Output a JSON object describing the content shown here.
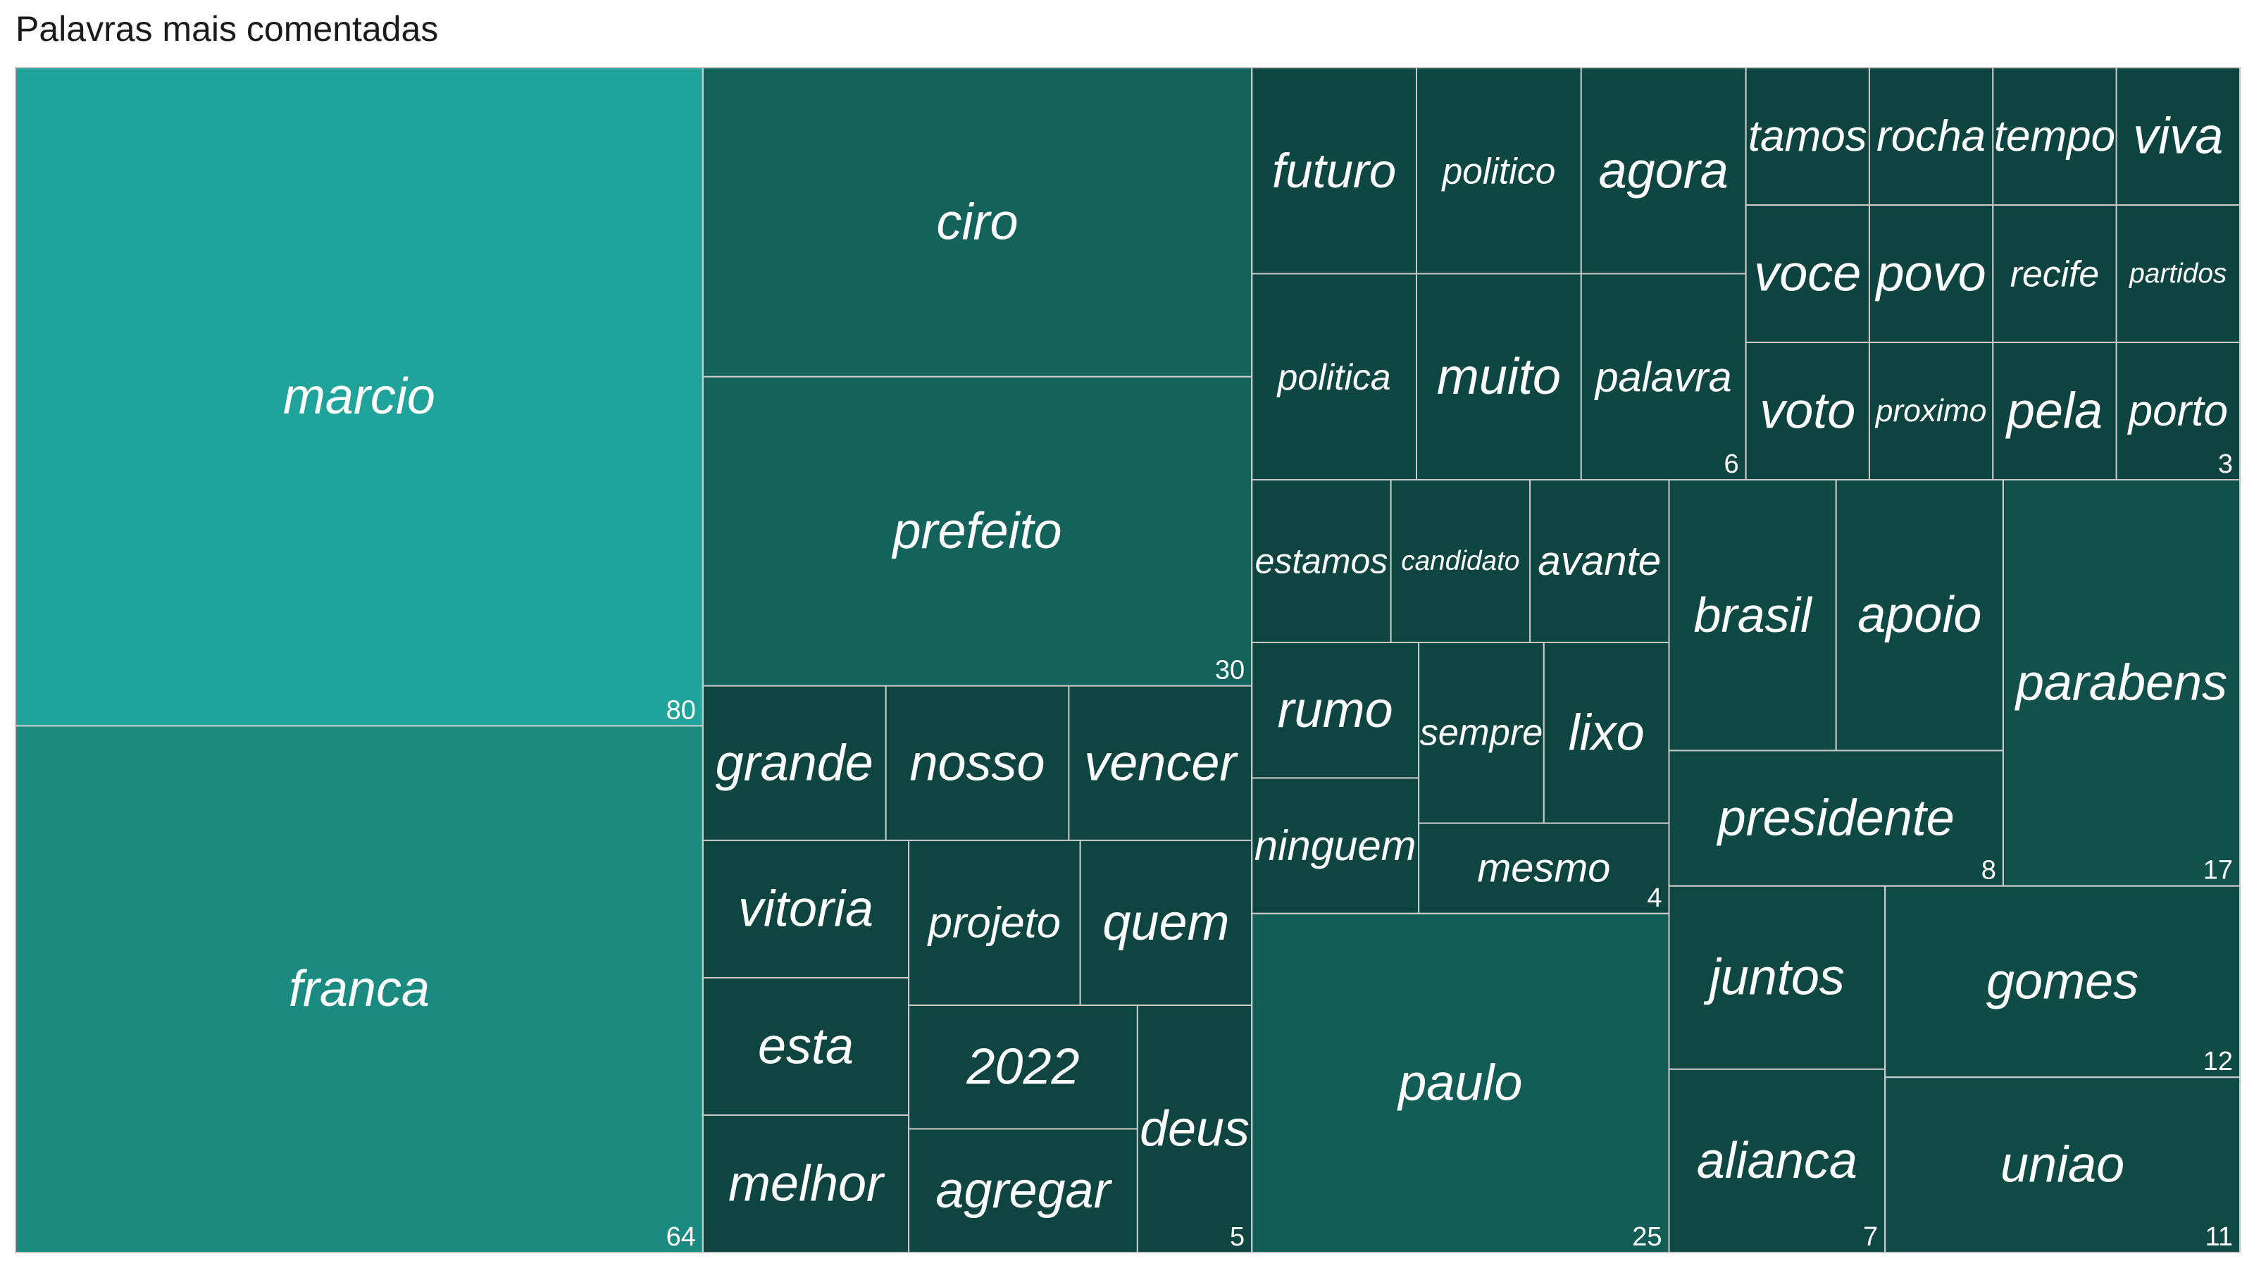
{
  "chart_data": {
    "type": "treemap",
    "title": "Palavras mais comentadas",
    "groups": [
      {
        "value": 80,
        "color": "#20a39a",
        "words": [
          {
            "label": "marcio",
            "value": 80
          }
        ]
      },
      {
        "value": 64,
        "color": "#1b8b81",
        "words": [
          {
            "label": "franca",
            "value": 64
          }
        ]
      },
      {
        "value": 30,
        "color": "#14625c",
        "words": [
          {
            "label": "ciro",
            "value": 30
          },
          {
            "label": "prefeito",
            "value": 30
          }
        ]
      },
      {
        "value": 25,
        "color": "#135d57",
        "words": [
          {
            "label": "paulo",
            "value": 25
          }
        ]
      },
      {
        "value": 17,
        "color": "#11504b",
        "words": [
          {
            "label": "parabens",
            "value": 17
          }
        ]
      },
      {
        "value": 12,
        "color": "#104c46",
        "words": [
          {
            "label": "gomes",
            "value": 12
          }
        ]
      },
      {
        "value": 11,
        "color": "#104a45",
        "words": [
          {
            "label": "uniao",
            "value": 11
          }
        ]
      },
      {
        "value": 8,
        "color": "#0f4944",
        "words": [
          {
            "label": "brasil",
            "value": 8
          },
          {
            "label": "apoio",
            "value": 8
          },
          {
            "label": "presidente",
            "value": 8
          }
        ]
      },
      {
        "value": 7,
        "color": "#0f4843",
        "words": [
          {
            "label": "juntos",
            "value": 7
          },
          {
            "label": "alianca",
            "value": 7
          }
        ]
      },
      {
        "value": 6,
        "color": "#0e4641",
        "words": [
          {
            "label": "futuro",
            "value": 6
          },
          {
            "label": "politica",
            "value": 6
          },
          {
            "label": "politico",
            "value": 6
          },
          {
            "label": "agora",
            "value": 6
          },
          {
            "label": "muito",
            "value": 6
          },
          {
            "label": "palavra",
            "value": 6
          }
        ]
      },
      {
        "value": 5,
        "color": "#0e4540",
        "words": [
          {
            "label": "grande",
            "value": 5
          },
          {
            "label": "nosso",
            "value": 5
          },
          {
            "label": "vencer",
            "value": 5
          },
          {
            "label": "vitoria",
            "value": 5
          },
          {
            "label": "esta",
            "value": 5
          },
          {
            "label": "melhor",
            "value": 5
          },
          {
            "label": "projeto",
            "value": 5
          },
          {
            "label": "quem",
            "value": 5
          },
          {
            "label": "2022",
            "value": 5
          },
          {
            "label": "agregar",
            "value": 5
          },
          {
            "label": "deus",
            "value": 5
          }
        ]
      },
      {
        "value": 4,
        "color": "#0e4540",
        "words": [
          {
            "label": "estamos",
            "value": 4
          },
          {
            "label": "candidato",
            "value": 4
          },
          {
            "label": "avante",
            "value": 4
          },
          {
            "label": "rumo",
            "value": 4
          },
          {
            "label": "ninguem",
            "value": 4
          },
          {
            "label": "sempre",
            "value": 4
          },
          {
            "label": "lixo",
            "value": 4
          },
          {
            "label": "mesmo",
            "value": 4
          }
        ]
      },
      {
        "value": 3,
        "color": "#0d443f",
        "words": [
          {
            "label": "tamos",
            "value": 3
          },
          {
            "label": "voce",
            "value": 3
          },
          {
            "label": "voto",
            "value": 3
          },
          {
            "label": "rocha",
            "value": 3
          },
          {
            "label": "tempo",
            "value": 3
          },
          {
            "label": "viva",
            "value": 3
          },
          {
            "label": "povo",
            "value": 3
          },
          {
            "label": "proximo",
            "value": 3
          },
          {
            "label": "recife",
            "value": 3
          },
          {
            "label": "partidos",
            "value": 3
          },
          {
            "label": "pela",
            "value": 3
          },
          {
            "label": "porto",
            "value": 3
          }
        ]
      }
    ]
  }
}
